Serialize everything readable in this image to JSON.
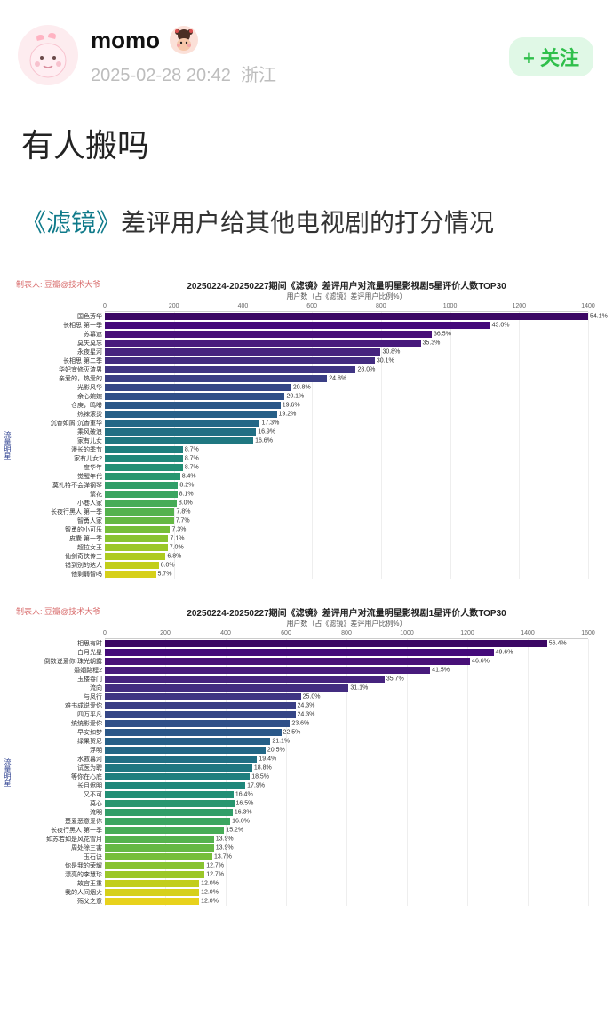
{
  "header": {
    "username": "momo",
    "timestamp": "2025-02-28 20:42",
    "location": "浙江",
    "follow_label": "+ 关注"
  },
  "post": {
    "title": "有人搬吗",
    "subtitle_book": "《滤镜》",
    "subtitle_rest": "差评用户给其他电视剧的打分情况"
  },
  "chart_common": {
    "maker_label": "制表人: 豆瓣@技术大爷",
    "side_label": "流量明星",
    "axis_y_label_1": "用户数（占《滤镜》差评用户比例%）",
    "grid_color": "#eeeeee",
    "label_color": "#333333",
    "title_fontsize": 10,
    "label_fontsize": 7
  },
  "chart1": {
    "type": "bar",
    "title": "20250224-20250227期间《滤镜》差评用户对流量明星影视剧5星评价人数TOP30",
    "xmax": 1400,
    "xticks": [
      0,
      200,
      400,
      600,
      800,
      1000,
      1200,
      1400
    ],
    "bars": [
      {
        "label": "国色芳华",
        "pct": "54.1%",
        "v": 1403,
        "c": "#3b0764"
      },
      {
        "label": "长相思 第一季",
        "pct": "43.0%",
        "v": 1116,
        "c": "#440a7a"
      },
      {
        "label": "苏幕遮",
        "pct": "36.5%",
        "v": 947,
        "c": "#481078"
      },
      {
        "label": "莫失莫忘",
        "pct": "35.3%",
        "v": 915,
        "c": "#481a7c"
      },
      {
        "label": "永夜星河",
        "pct": "30.8%",
        "v": 799,
        "c": "#46237e"
      },
      {
        "label": "长相思 第二季",
        "pct": "30.1%",
        "v": 782,
        "c": "#432c80"
      },
      {
        "label": "华妃宜修灭渣男",
        "pct": "28.0%",
        "v": 727,
        "c": "#3f3583"
      },
      {
        "label": "亲爱的，热爱的",
        "pct": "24.8%",
        "v": 644,
        "c": "#3a3e85"
      },
      {
        "label": "光影风华",
        "pct": "20.8%",
        "v": 540,
        "c": "#354686"
      },
      {
        "label": "余心婉婉",
        "pct": "20.1%",
        "v": 521,
        "c": "#2f4f88"
      },
      {
        "label": "仓庚，鸣啭",
        "pct": "19.6%",
        "v": 509,
        "c": "#2a5788"
      },
      {
        "label": "热辣滚烫",
        "pct": "19.2%",
        "v": 498,
        "c": "#265f87"
      },
      {
        "label": "沉香如屑·沉香重华",
        "pct": "17.3%",
        "v": 449,
        "c": "#236786"
      },
      {
        "label": "乘风破浪",
        "pct": "16.9%",
        "v": 438,
        "c": "#216f84"
      },
      {
        "label": "家有儿女",
        "pct": "16.6%",
        "v": 430,
        "c": "#1f7781"
      },
      {
        "label": "漫长的季节",
        "pct": "8.7%",
        "v": 226,
        "c": "#1e7f7e"
      },
      {
        "label": "家有儿女2",
        "pct": "8.7%",
        "v": 226,
        "c": "#1f877a"
      },
      {
        "label": "度华年",
        "pct": "8.7%",
        "v": 226,
        "c": "#228f75"
      },
      {
        "label": "觉醒年代",
        "pct": "8.4%",
        "v": 218,
        "c": "#28966f"
      },
      {
        "label": "莫扎特不会弹钢琴",
        "pct": "8.2%",
        "v": 212,
        "c": "#309e68"
      },
      {
        "label": "繁花",
        "pct": "8.1%",
        "v": 210,
        "c": "#3ba560"
      },
      {
        "label": "小巷人家",
        "pct": "8.0%",
        "v": 208,
        "c": "#47ac57"
      },
      {
        "label": "长夜行黑人 第一季",
        "pct": "7.8%",
        "v": 202,
        "c": "#55b24e"
      },
      {
        "label": "智勇人家",
        "pct": "7.7%",
        "v": 200,
        "c": "#65b844"
      },
      {
        "label": "智勇的小可乐",
        "pct": "7.3%",
        "v": 189,
        "c": "#76be3a"
      },
      {
        "label": "皮囊 第一季",
        "pct": "7.1%",
        "v": 184,
        "c": "#88c331"
      },
      {
        "label": "超拉女王",
        "pct": "7.0%",
        "v": 182,
        "c": "#9bc728"
      },
      {
        "label": "仙剑奇侠传三",
        "pct": "6.8%",
        "v": 176,
        "c": "#aecb20"
      },
      {
        "label": "错到别的达人",
        "pct": "6.0%",
        "v": 156,
        "c": "#c2ce1b"
      },
      {
        "label": "他剩弱智吗",
        "pct": "5.7%",
        "v": 148,
        "c": "#d6d01a"
      }
    ]
  },
  "chart2": {
    "type": "bar",
    "title": "20250224-20250227期间《滤镜》差评用户对流量明星影视剧1星评价人数TOP30",
    "xmax": 1600,
    "xticks": [
      0,
      200,
      400,
      600,
      800,
      1000,
      1200,
      1400,
      1600
    ],
    "bars": [
      {
        "label": "相思有时",
        "pct": "56.4%",
        "v": 1464,
        "c": "#3b0764"
      },
      {
        "label": "白月光星",
        "pct": "49.6%",
        "v": 1287,
        "c": "#440a7a"
      },
      {
        "label": "倒数说爱你·珠光朝露",
        "pct": "46.6%",
        "v": 1209,
        "c": "#481078"
      },
      {
        "label": "婚姻路程2",
        "pct": "41.5%",
        "v": 1077,
        "c": "#481a7c"
      },
      {
        "label": "玉楼春门",
        "pct": "35.7%",
        "v": 926,
        "c": "#46237e"
      },
      {
        "label": "流向",
        "pct": "31.1%",
        "v": 807,
        "c": "#432c80"
      },
      {
        "label": "与凤行",
        "pct": "25.0%",
        "v": 649,
        "c": "#3f3583"
      },
      {
        "label": "难书成说爱你",
        "pct": "24.3%",
        "v": 631,
        "c": "#3a3e85"
      },
      {
        "label": "四万平凡",
        "pct": "24.3%",
        "v": 631,
        "c": "#354686"
      },
      {
        "label": "统统影爱你",
        "pct": "23.6%",
        "v": 613,
        "c": "#2f4f88"
      },
      {
        "label": "早安如梦",
        "pct": "22.5%",
        "v": 584,
        "c": "#2a5788"
      },
      {
        "label": "绿果贺尼",
        "pct": "21.1%",
        "v": 548,
        "c": "#265f87"
      },
      {
        "label": "浮明",
        "pct": "20.5%",
        "v": 532,
        "c": "#236786"
      },
      {
        "label": "水救暮河",
        "pct": "19.4%",
        "v": 504,
        "c": "#216f84"
      },
      {
        "label": "试医为聘",
        "pct": "18.8%",
        "v": 488,
        "c": "#1f7781"
      },
      {
        "label": "等你在心底",
        "pct": "18.5%",
        "v": 480,
        "c": "#1e7f7e"
      },
      {
        "label": "长月烬明",
        "pct": "17.9%",
        "v": 465,
        "c": "#1f877a"
      },
      {
        "label": "又不可",
        "pct": "16.4%",
        "v": 426,
        "c": "#228f75"
      },
      {
        "label": "莫心",
        "pct": "16.5%",
        "v": 428,
        "c": "#28966f"
      },
      {
        "label": "流明",
        "pct": "16.3%",
        "v": 423,
        "c": "#309e68"
      },
      {
        "label": "楚爱恶意爱你",
        "pct": "16.0%",
        "v": 415,
        "c": "#3ba560"
      },
      {
        "label": "长夜行黑人 第一季",
        "pct": "15.2%",
        "v": 395,
        "c": "#47ac57"
      },
      {
        "label": "如苏若如是风花雪月",
        "pct": "13.9%",
        "v": 361,
        "c": "#55b24e"
      },
      {
        "label": "周处除三害",
        "pct": "13.9%",
        "v": 361,
        "c": "#65b844"
      },
      {
        "label": "玉石诀",
        "pct": "13.7%",
        "v": 356,
        "c": "#76be3a"
      },
      {
        "label": "你是我的荣耀",
        "pct": "12.7%",
        "v": 330,
        "c": "#88c331"
      },
      {
        "label": "漂亮的李慧珍",
        "pct": "12.7%",
        "v": 330,
        "c": "#9bc728"
      },
      {
        "label": "故宫王重",
        "pct": "12.0%",
        "v": 312,
        "c": "#c2ce1b"
      },
      {
        "label": "我的人间烟火",
        "pct": "12.0%",
        "v": 312,
        "c": "#d6d01a"
      },
      {
        "label": "殇父之意",
        "pct": "12.0%",
        "v": 312,
        "c": "#e8d21c"
      }
    ]
  }
}
